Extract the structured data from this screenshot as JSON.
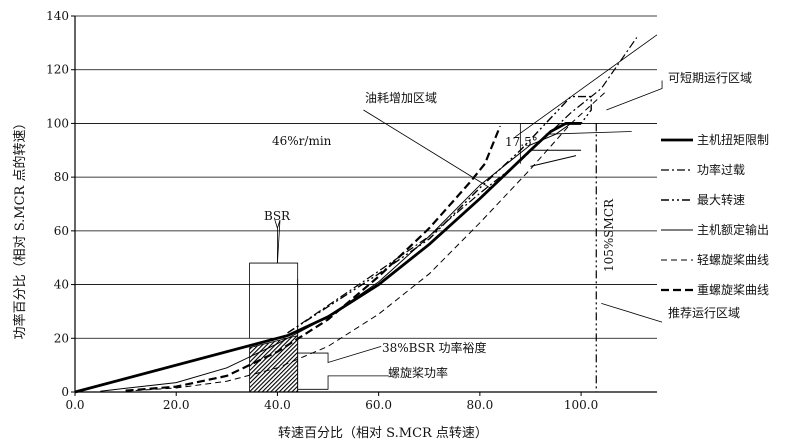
{
  "chart_data": {
    "type": "line",
    "title": "",
    "xlabel": "转速百分比（相对 S.MCR 点转速）",
    "ylabel": "功率百分比（相对 S.MCR 点的转速）",
    "xlim": [
      0,
      115
    ],
    "ylim": [
      0,
      140
    ],
    "x_ticks": [
      0,
      20,
      40,
      60,
      80,
      100
    ],
    "x_tick_labels": [
      "0.0",
      "20.0",
      "40.0",
      "60.0",
      "80.0",
      "100.0"
    ],
    "y_ticks": [
      0,
      20,
      40,
      60,
      80,
      100,
      120,
      140
    ],
    "y_tick_labels": [
      "0",
      "20",
      "40",
      "60",
      "80",
      "100",
      "120",
      "140"
    ],
    "grid": "horizontal",
    "series": [
      {
        "name": "主机扭矩限制",
        "style": "solid-thick",
        "points": [
          [
            0,
            0
          ],
          [
            42,
            21
          ],
          [
            50,
            28
          ],
          [
            60,
            40
          ],
          [
            70,
            55
          ],
          [
            80,
            72
          ],
          [
            90,
            90
          ],
          [
            94,
            97
          ],
          [
            97,
            100
          ],
          [
            100,
            100
          ]
        ]
      },
      {
        "name": "功率过载",
        "style": "dashdot",
        "points": [
          [
            42,
            22
          ],
          [
            60,
            45
          ],
          [
            70,
            58
          ],
          [
            80,
            74
          ],
          [
            88,
            86
          ],
          [
            93,
            95
          ],
          [
            98,
            104
          ],
          [
            104,
            113
          ],
          [
            111,
            132
          ]
        ]
      },
      {
        "name": "最大转速",
        "style": "dashdotdot",
        "points": [
          [
            42,
            22
          ],
          [
            60,
            44
          ],
          [
            70,
            57
          ],
          [
            80,
            76
          ],
          [
            88,
            90
          ],
          [
            93,
            100
          ],
          [
            96,
            106
          ],
          [
            98,
            110
          ],
          [
            102,
            110
          ],
          [
            102,
            105
          ],
          [
            100,
            100
          ],
          [
            98,
            100
          ]
        ]
      },
      {
        "name": "主机额定输出",
        "style": "solid-thin",
        "points": [
          [
            5,
            0.3
          ],
          [
            20,
            3.5
          ],
          [
            30,
            9
          ],
          [
            40,
            18
          ],
          [
            50,
            28
          ],
          [
            60,
            41
          ],
          [
            70,
            58
          ],
          [
            80,
            77
          ],
          [
            90,
            92
          ],
          [
            95,
            96
          ],
          [
            98,
            100
          ]
        ]
      },
      {
        "name": "轻螺旋桨曲线",
        "style": "dashed-thin",
        "points": [
          [
            10,
            0.3
          ],
          [
            20,
            1.5
          ],
          [
            30,
            4
          ],
          [
            40,
            9
          ],
          [
            50,
            17
          ],
          [
            60,
            29
          ],
          [
            70,
            44
          ],
          [
            80,
            63
          ],
          [
            90,
            83
          ],
          [
            98,
            100
          ],
          [
            105,
            112
          ]
        ]
      },
      {
        "name": "重螺旋桨曲线",
        "style": "dashed-thick",
        "points": [
          [
            10,
            0.5
          ],
          [
            20,
            2
          ],
          [
            30,
            6
          ],
          [
            40,
            15
          ],
          [
            50,
            27
          ],
          [
            60,
            43
          ],
          [
            70,
            61
          ],
          [
            78,
            78
          ],
          [
            81,
            85
          ],
          [
            84,
            99
          ]
        ]
      }
    ],
    "legend": {
      "position": "right",
      "entries": [
        "主机扭矩限制",
        "功率过载",
        "最大转速",
        "主机额定输出",
        "轻螺旋桨曲线",
        "重螺旋桨曲线"
      ]
    },
    "annotations": {
      "fuel_region": "油耗增加区域",
      "speed_46": "46%r/min",
      "bsr": "BSR",
      "bsr_margin": "38%BSR 功率裕度",
      "prop_power": "螺旋桨功率",
      "angle": "17.5°",
      "short_term": "可短期运行区域",
      "speed_limit": "105%SMCR",
      "recommended": "推荐运行区域"
    }
  }
}
